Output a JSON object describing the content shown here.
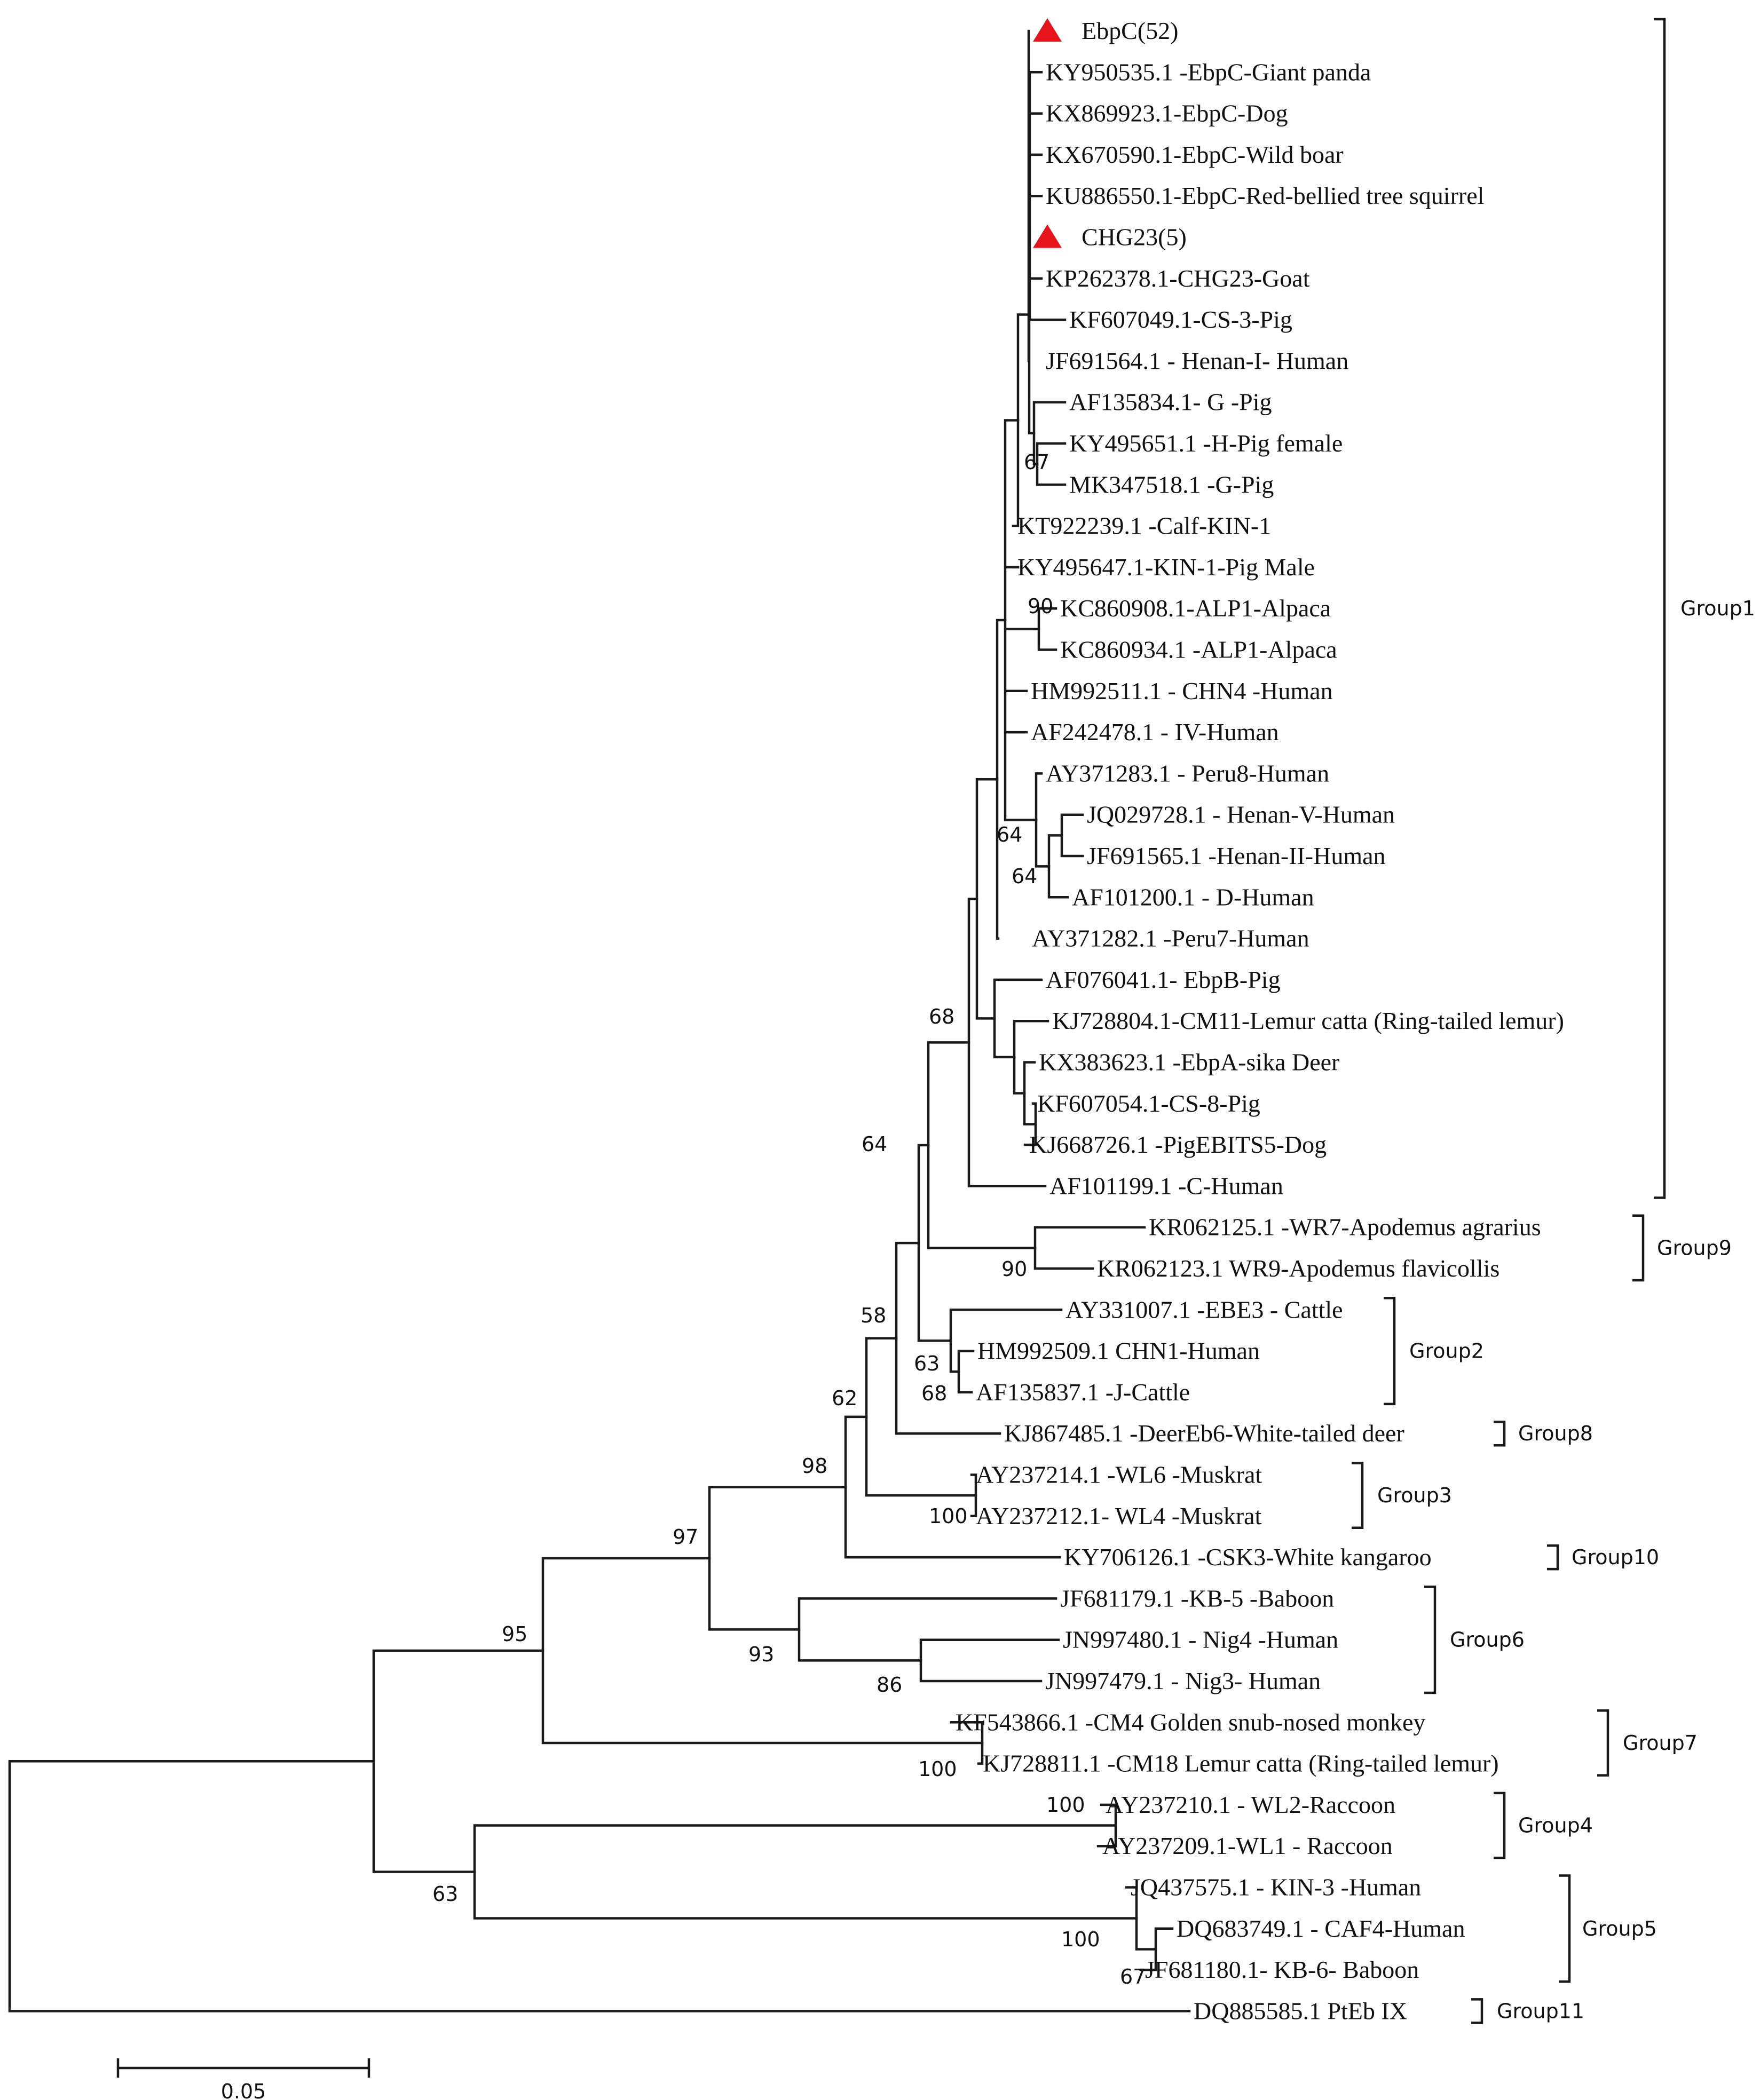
{
  "diagram": {
    "type": "phylogenetic-tree",
    "marker_color": "#e8141b",
    "taxa": [
      {
        "label": "EbpC(52)",
        "marked": true
      },
      {
        "label": "KY950535.1 -EbpC-Giant panda"
      },
      {
        "label": "KX869923.1-EbpC-Dog"
      },
      {
        "label": "KX670590.1-EbpC-Wild  boar"
      },
      {
        "label": "KU886550.1-EbpC-Red-bellied  tree  squirrel"
      },
      {
        "label": "CHG23(5)",
        "marked": true
      },
      {
        "label": "KP262378.1-CHG23-Goat"
      },
      {
        "label": "KF607049.1-CS-3-Pig"
      },
      {
        "label": "JF691564.1 - Henan-I- Human"
      },
      {
        "label": "AF135834.1- G -Pig"
      },
      {
        "label": "KY495651.1 -H-Pig female"
      },
      {
        "label": "MK347518.1 -G-Pig"
      },
      {
        "label": "KT922239.1  -Calf-KIN-1"
      },
      {
        "label": "KY495647.1-KIN-1-Pig  Male"
      },
      {
        "label": "KC860908.1-ALP1-Alpaca"
      },
      {
        "label": "KC860934.1  -ALP1-Alpaca"
      },
      {
        "label": "HM992511.1 - CHN4 -Human"
      },
      {
        "label": "AF242478.1 - IV-Human"
      },
      {
        "label": "AY371283.1 - Peru8-Human"
      },
      {
        "label": "JQ029728.1 - Henan-V-Human"
      },
      {
        "label": "JF691565.1 -Henan-II-Human"
      },
      {
        "label": "AF101200.1 - D-Human"
      },
      {
        "label": "AY371282.1 -Peru7-Human"
      },
      {
        "label": "AF076041.1-  EbpB-Pig"
      },
      {
        "label": "KJ728804.1-CM11-Lemur catta (Ring-tailed lemur)"
      },
      {
        "label": "KX383623.1  -EbpA-sika  Deer"
      },
      {
        "label": "KF607054.1-CS-8-Pig"
      },
      {
        "label": "KJ668726.1  -PigEBITS5-Dog"
      },
      {
        "label": "AF101199.1 -C-Human"
      },
      {
        "label": "KR062125.1  -WR7-Apodemus  agrarius"
      },
      {
        "label": "KR062123.1  WR9-Apodemus  flavicollis"
      },
      {
        "label": "AY331007.1  -EBE3 -  Cattle"
      },
      {
        "label": "HM992509.1 CHN1-Human"
      },
      {
        "label": "AF135837.1  -J-Cattle"
      },
      {
        "label": "KJ867485.1  -DeerEb6-White-tailed deer"
      },
      {
        "label": "AY237214.1 -WL6 -Muskrat"
      },
      {
        "label": "AY237212.1- WL4 -Muskrat"
      },
      {
        "label": "KY706126.1 -CSK3-White kangaroo"
      },
      {
        "label": "JF681179.1 -KB-5 -Baboon"
      },
      {
        "label": "JN997480.1 - Nig4 -Human"
      },
      {
        "label": "JN997479.1 - Nig3- Human"
      },
      {
        "label": "KF543866.1 -CM4 Golden snub-nosed monkey"
      },
      {
        "label": "KJ728811.1 -CM18 Lemur catta (Ring-tailed lemur)"
      },
      {
        "label": "AY237210.1 - WL2-Raccoon"
      },
      {
        "label": "AY237209.1-WL1 - Raccoon"
      },
      {
        "label": "JQ437575.1 - KIN-3 -Human"
      },
      {
        "label": "DQ683749.1 - CAF4-Human"
      },
      {
        "label": "JF681180.1- KB-6- Baboon"
      },
      {
        "label": "DQ885585.1 PtEb IX"
      }
    ],
    "bootstrap_values": [
      "67",
      "90",
      "64",
      "64",
      "68",
      "64",
      "90",
      "58",
      "63",
      "68",
      "62",
      "98",
      "100",
      "97",
      "93",
      "86",
      "95",
      "100",
      "100",
      "63",
      "100",
      "67"
    ],
    "groups": [
      {
        "name": "Group1",
        "first_taxon": "EbpC(52)",
        "last_taxon": "AF101199.1 -C-Human"
      },
      {
        "name": "Group9",
        "first_taxon": "KR062125.1  -WR7-Apodemus  agrarius",
        "last_taxon": "KR062123.1  WR9-Apodemus  flavicollis"
      },
      {
        "name": "Group2",
        "first_taxon": "AY331007.1  -EBE3 -  Cattle",
        "last_taxon": "AF135837.1  -J-Cattle"
      },
      {
        "name": "Group8",
        "first_taxon": "KJ867485.1  -DeerEb6-White-tailed deer",
        "last_taxon": "KJ867485.1  -DeerEb6-White-tailed deer"
      },
      {
        "name": "Group3",
        "first_taxon": "AY237214.1 -WL6 -Muskrat",
        "last_taxon": "AY237212.1- WL4 -Muskrat"
      },
      {
        "name": "Group10",
        "first_taxon": "KY706126.1 -CSK3-White kangaroo",
        "last_taxon": "KY706126.1 -CSK3-White kangaroo"
      },
      {
        "name": "Group6",
        "first_taxon": "JF681179.1 -KB-5 -Baboon",
        "last_taxon": "JN997479.1 - Nig3- Human"
      },
      {
        "name": "Group7",
        "first_taxon": "KF543866.1 -CM4 Golden snub-nosed monkey",
        "last_taxon": "KJ728811.1 -CM18 Lemur catta (Ring-tailed lemur)"
      },
      {
        "name": "Group4",
        "first_taxon": "AY237210.1 - WL2-Raccoon",
        "last_taxon": "AY237209.1-WL1 - Raccoon"
      },
      {
        "name": "Group5",
        "first_taxon": "JQ437575.1 - KIN-3 -Human",
        "last_taxon": "JF681180.1- KB-6- Baboon"
      },
      {
        "name": "Group11",
        "first_taxon": "DQ885585.1 PtEb IX",
        "last_taxon": "DQ885585.1 PtEb IX"
      }
    ],
    "scale_bar": {
      "label": "0.05",
      "value": 0.05
    }
  }
}
